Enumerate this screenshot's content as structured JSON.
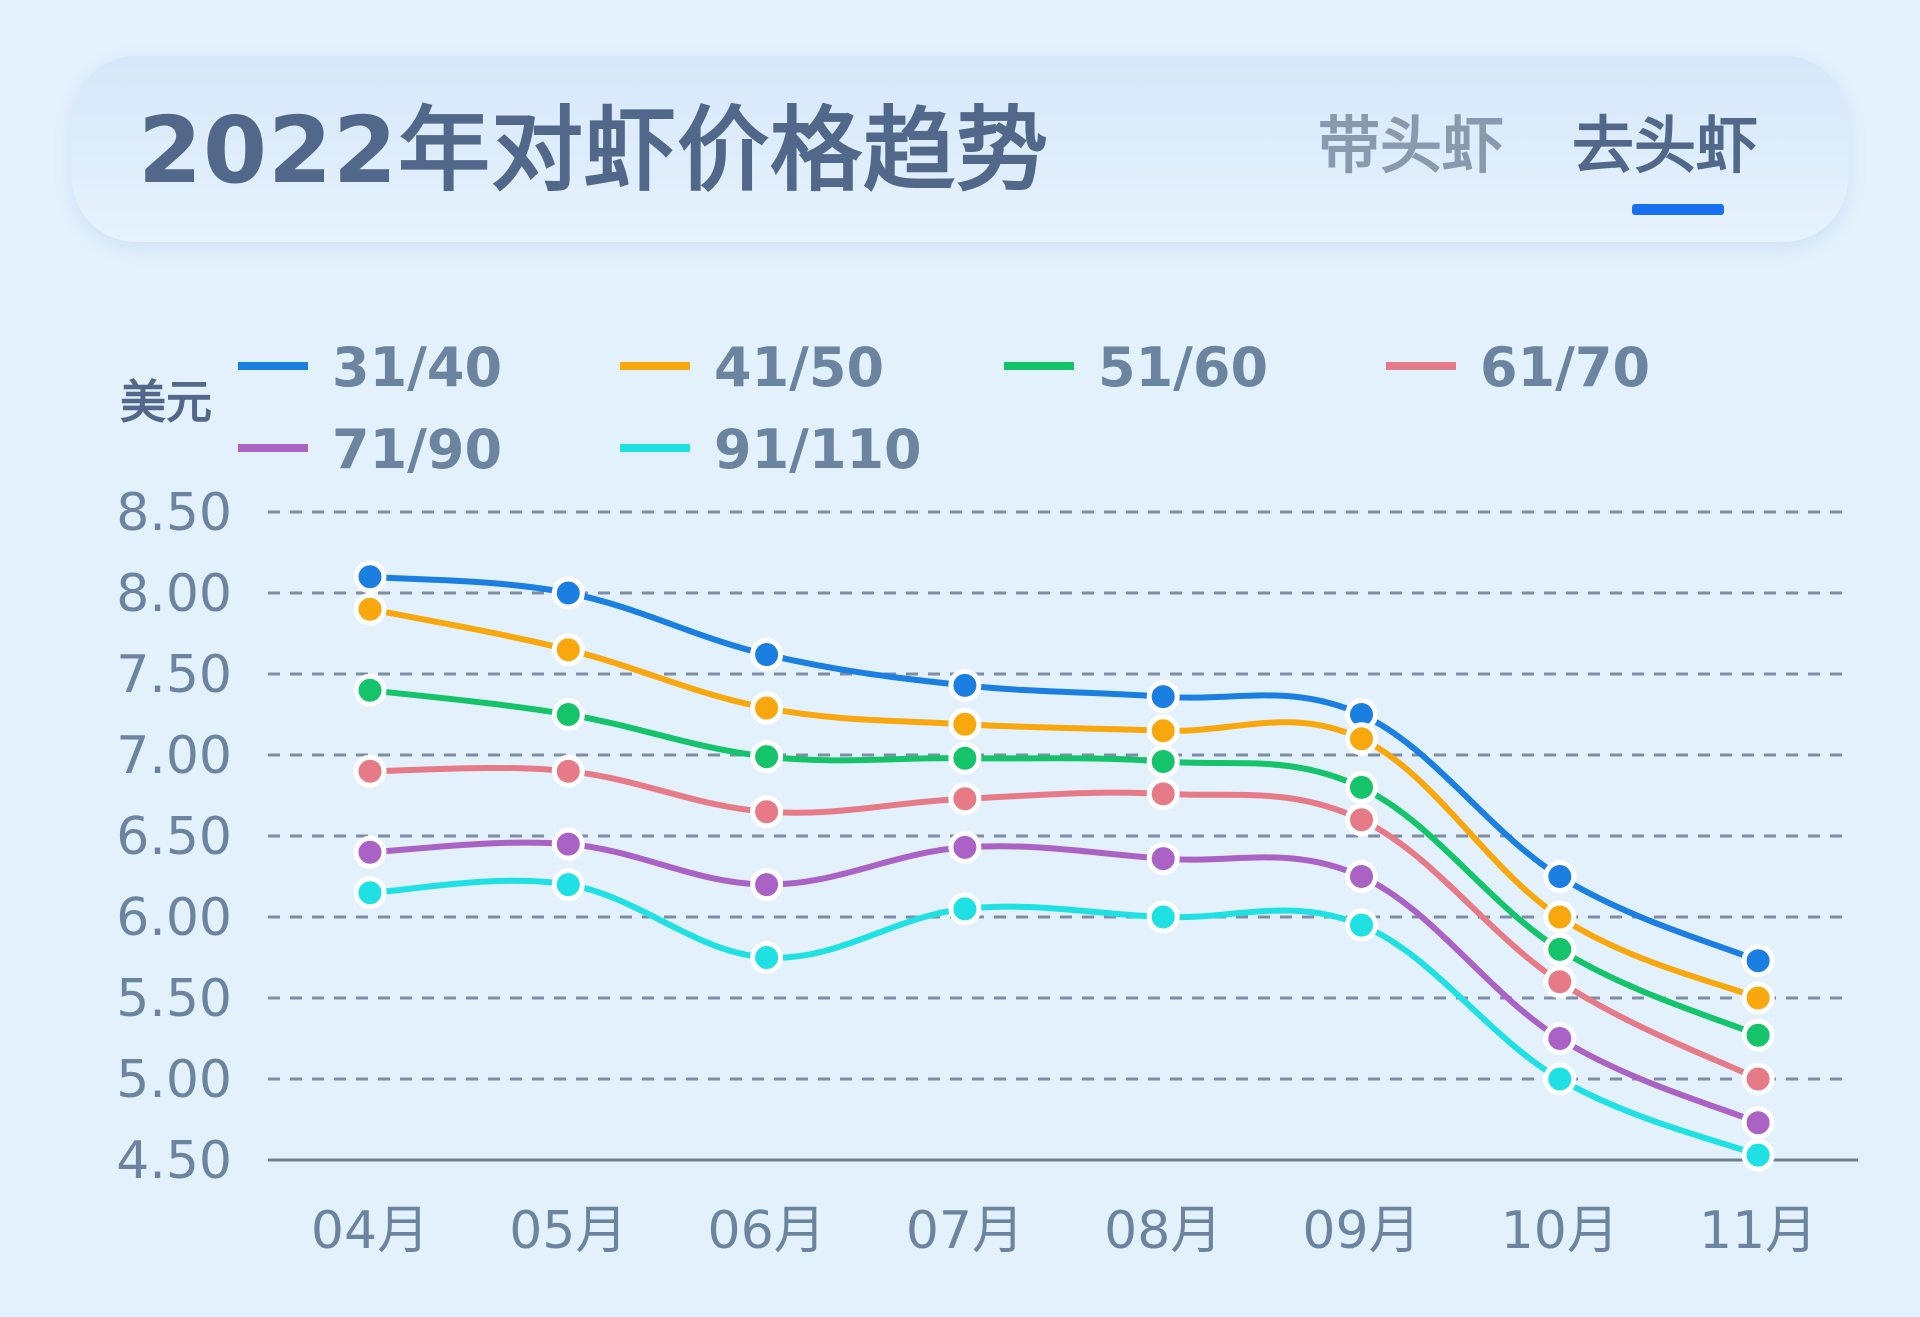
{
  "header": {
    "title": "2022年对虾价格趋势",
    "tabs": [
      {
        "label": "带头虾",
        "active": false
      },
      {
        "label": "去头虾",
        "active": true
      }
    ],
    "accent_color": "#1670f0"
  },
  "chart_data": {
    "type": "line",
    "title": "2022年对虾价格趋势",
    "ylabel": "美元",
    "xlabel": "",
    "ylim": [
      4.5,
      8.5
    ],
    "yticks": [
      "8.50",
      "8.00",
      "7.50",
      "7.00",
      "6.50",
      "6.00",
      "5.50",
      "5.00",
      "4.50"
    ],
    "categories": [
      "04月",
      "05月",
      "06月",
      "07月",
      "08月",
      "09月",
      "10月",
      "11月"
    ],
    "grid": true,
    "legend_position": "top-left",
    "series": [
      {
        "name": "31/40",
        "color": "#1a7fe0",
        "values": [
          8.1,
          8.0,
          7.62,
          7.43,
          7.36,
          7.25,
          6.25,
          5.73
        ]
      },
      {
        "name": "41/50",
        "color": "#f8a80c",
        "values": [
          7.9,
          7.65,
          7.29,
          7.19,
          7.15,
          7.1,
          6.0,
          5.5
        ]
      },
      {
        "name": "51/60",
        "color": "#15c46a",
        "values": [
          7.4,
          7.25,
          6.99,
          6.98,
          6.96,
          6.8,
          5.8,
          5.27
        ]
      },
      {
        "name": "61/70",
        "color": "#e67b87",
        "values": [
          6.9,
          6.9,
          6.65,
          6.73,
          6.76,
          6.6,
          5.6,
          5.0
        ]
      },
      {
        "name": "71/90",
        "color": "#aa62c4",
        "values": [
          6.4,
          6.45,
          6.2,
          6.43,
          6.36,
          6.25,
          5.25,
          4.73
        ]
      },
      {
        "name": "91/110",
        "color": "#1fe0e2",
        "values": [
          6.15,
          6.2,
          5.75,
          6.05,
          6.0,
          5.95,
          5.0,
          4.53
        ]
      }
    ]
  }
}
